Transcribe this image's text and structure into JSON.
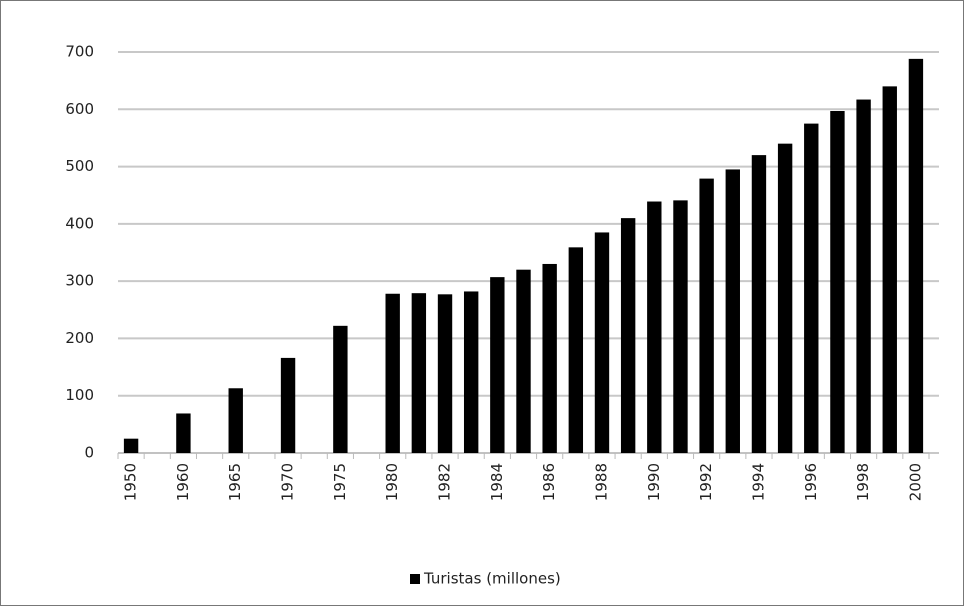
{
  "chart_data": {
    "type": "bar",
    "categories": [
      "1950",
      null,
      "1960",
      null,
      "1965",
      null,
      "1970",
      null,
      "1975",
      null,
      "1980",
      null,
      "1982",
      null,
      "1984",
      null,
      "1986",
      null,
      "1988",
      null,
      "1990",
      null,
      "1992",
      null,
      "1994",
      null,
      "1996",
      null,
      "1998",
      null,
      "2000"
    ],
    "series": [
      {
        "name": "Turistas (millones)",
        "color": "#000000",
        "values": [
          25,
          null,
          69,
          null,
          113,
          null,
          166,
          null,
          222,
          null,
          278,
          279,
          277,
          282,
          307,
          320,
          330,
          359,
          385,
          410,
          439,
          441,
          479,
          495,
          520,
          540,
          575,
          597,
          617,
          640,
          688
        ]
      }
    ],
    "ylim": [
      0,
      700
    ],
    "yticks": [
      0,
      100,
      200,
      300,
      400,
      500,
      600,
      700
    ],
    "grid": true,
    "legend": "bottom"
  }
}
